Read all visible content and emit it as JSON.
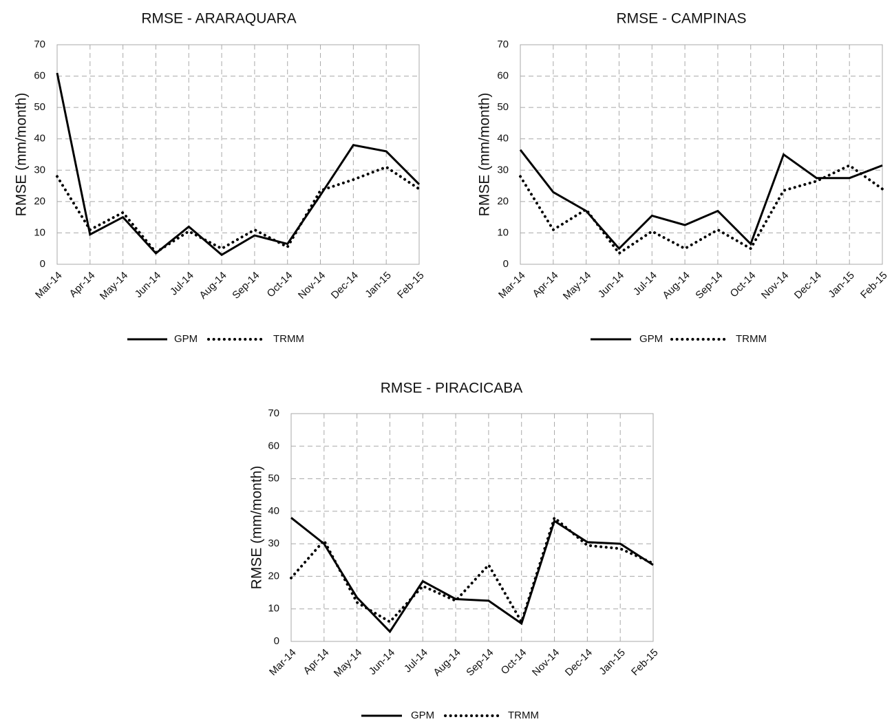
{
  "chart_data": [
    {
      "type": "line",
      "title": "RMSE - ARARAQUARA",
      "xlabel": "",
      "ylabel": "RMSE (mm/month)",
      "ylim": [
        0,
        70
      ],
      "yticks": [
        0,
        10,
        20,
        30,
        40,
        50,
        60,
        70
      ],
      "grid": true,
      "legend": "bottom",
      "categories": [
        "Mar-14",
        "Apr-14",
        "May-14",
        "Jun-14",
        "Jul-14",
        "Aug-14",
        "Sep-14",
        "Oct-14",
        "Nov-14",
        "Dec-14",
        "Jan-15",
        "Feb-15"
      ],
      "series": [
        {
          "name": "GPM",
          "style": "solid",
          "values": [
            61,
            9.5,
            15,
            3.5,
            12,
            3,
            9.2,
            6.5,
            22,
            38,
            36,
            25.5
          ]
        },
        {
          "name": "TRMM",
          "style": "dotted",
          "values": [
            28,
            11,
            16.5,
            3.8,
            10.5,
            5,
            11,
            5.5,
            23.5,
            27,
            31,
            24
          ]
        }
      ]
    },
    {
      "type": "line",
      "title": "RMSE - CAMPINAS",
      "xlabel": "",
      "ylabel": "RMSE (mm/month)",
      "ylim": [
        0,
        70
      ],
      "yticks": [
        0,
        10,
        20,
        30,
        40,
        50,
        60,
        70
      ],
      "grid": true,
      "legend": "bottom",
      "categories": [
        "Mar-14",
        "Apr-14",
        "May-14",
        "Jun-14",
        "Jul-14",
        "Aug-14",
        "Sep-14",
        "Oct-14",
        "Nov-14",
        "Dec-14",
        "Jan-15",
        "Feb-15"
      ],
      "series": [
        {
          "name": "GPM",
          "style": "solid",
          "values": [
            36.5,
            23,
            17,
            5,
            15.5,
            12.5,
            17,
            6.5,
            35,
            27.5,
            27.5,
            31.5
          ]
        },
        {
          "name": "TRMM",
          "style": "dotted",
          "values": [
            28,
            11,
            17.5,
            3.5,
            10.5,
            5,
            11,
            5,
            23.5,
            26.5,
            31.5,
            24
          ]
        }
      ]
    },
    {
      "type": "line",
      "title": "RMSE - PIRACICABA",
      "xlabel": "",
      "ylabel": "RMSE (mm/month)",
      "ylim": [
        0,
        70
      ],
      "yticks": [
        0,
        10,
        20,
        30,
        40,
        50,
        60,
        70
      ],
      "grid": true,
      "legend": "bottom",
      "categories": [
        "Mar-14",
        "Apr-14",
        "May-14",
        "Jun-14",
        "Jul-14",
        "Aug-14",
        "Sep-14",
        "Oct-14",
        "Nov-14",
        "Dec-14",
        "Jan-15",
        "Feb-15"
      ],
      "series": [
        {
          "name": "GPM",
          "style": "solid",
          "values": [
            38,
            30,
            13.5,
            3,
            18.5,
            13,
            12.5,
            5.5,
            37,
            30.5,
            30,
            23.5
          ]
        },
        {
          "name": "TRMM",
          "style": "dotted",
          "values": [
            19.5,
            31,
            12,
            6,
            17,
            12.5,
            23.5,
            6,
            38,
            29.5,
            28.5,
            24
          ]
        }
      ]
    }
  ]
}
